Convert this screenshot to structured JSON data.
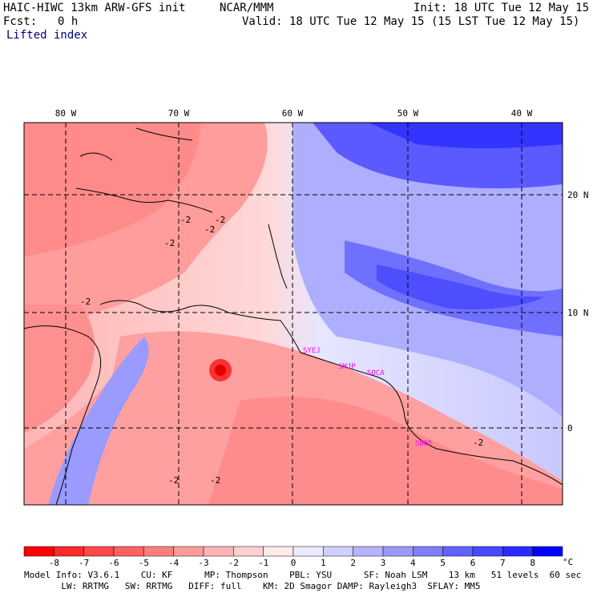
{
  "header": {
    "model": "HAIC-HIWC 13km ARW-GFS init",
    "org": "NCAR/MMM",
    "init": "Init: 18 UTC Tue 12 May 15",
    "fcst_label": "Fcst:",
    "fcst_value": "0 h",
    "valid": "Valid: 18 UTC Tue 12 May 15 (15 LST Tue 12 May 15)"
  },
  "field_name": "Lifted index",
  "map": {
    "lon_labels": [
      "80 W",
      "70 W",
      "60 W",
      "50 W",
      "40 W"
    ],
    "lat_labels": [
      "20 N",
      "10 N",
      "0"
    ],
    "stations": [
      "SYEJ",
      "SMJP",
      "SOCA",
      "SBBE"
    ],
    "contour_labels": [
      "-2",
      "-2",
      "-2",
      "-2",
      "-2",
      "-2",
      "-2",
      "-2"
    ]
  },
  "colorbar": {
    "ticks": [
      "-8",
      "-7",
      "-6",
      "-5",
      "-4",
      "-3",
      "-2",
      "-1",
      "0",
      "1",
      "2",
      "3",
      "4",
      "5",
      "6",
      "7",
      "8"
    ],
    "unit": "°C",
    "colors": [
      "#ff0000",
      "#ff2a2a",
      "#ff4848",
      "#ff6262",
      "#ff7f7f",
      "#ff9a9a",
      "#ffb4b4",
      "#ffd0d0",
      "#ffeaea",
      "#eaeaff",
      "#d0d0ff",
      "#b4b4ff",
      "#9a9aff",
      "#7f7fff",
      "#6262ff",
      "#4848ff",
      "#2a2aff",
      "#0000ff"
    ]
  },
  "footer": {
    "line1": "Model Info: V3.6.1    CU: KF      MP: Thompson    PBL: YSU      SF: Noah LSM    13 km   51 levels  60 sec",
    "line2": "       LW: RRTMG   SW: RRTMG   DIFF: full    KM: 2D Smagor DAMP: Rayleigh3  SFLAY: MM5"
  }
}
